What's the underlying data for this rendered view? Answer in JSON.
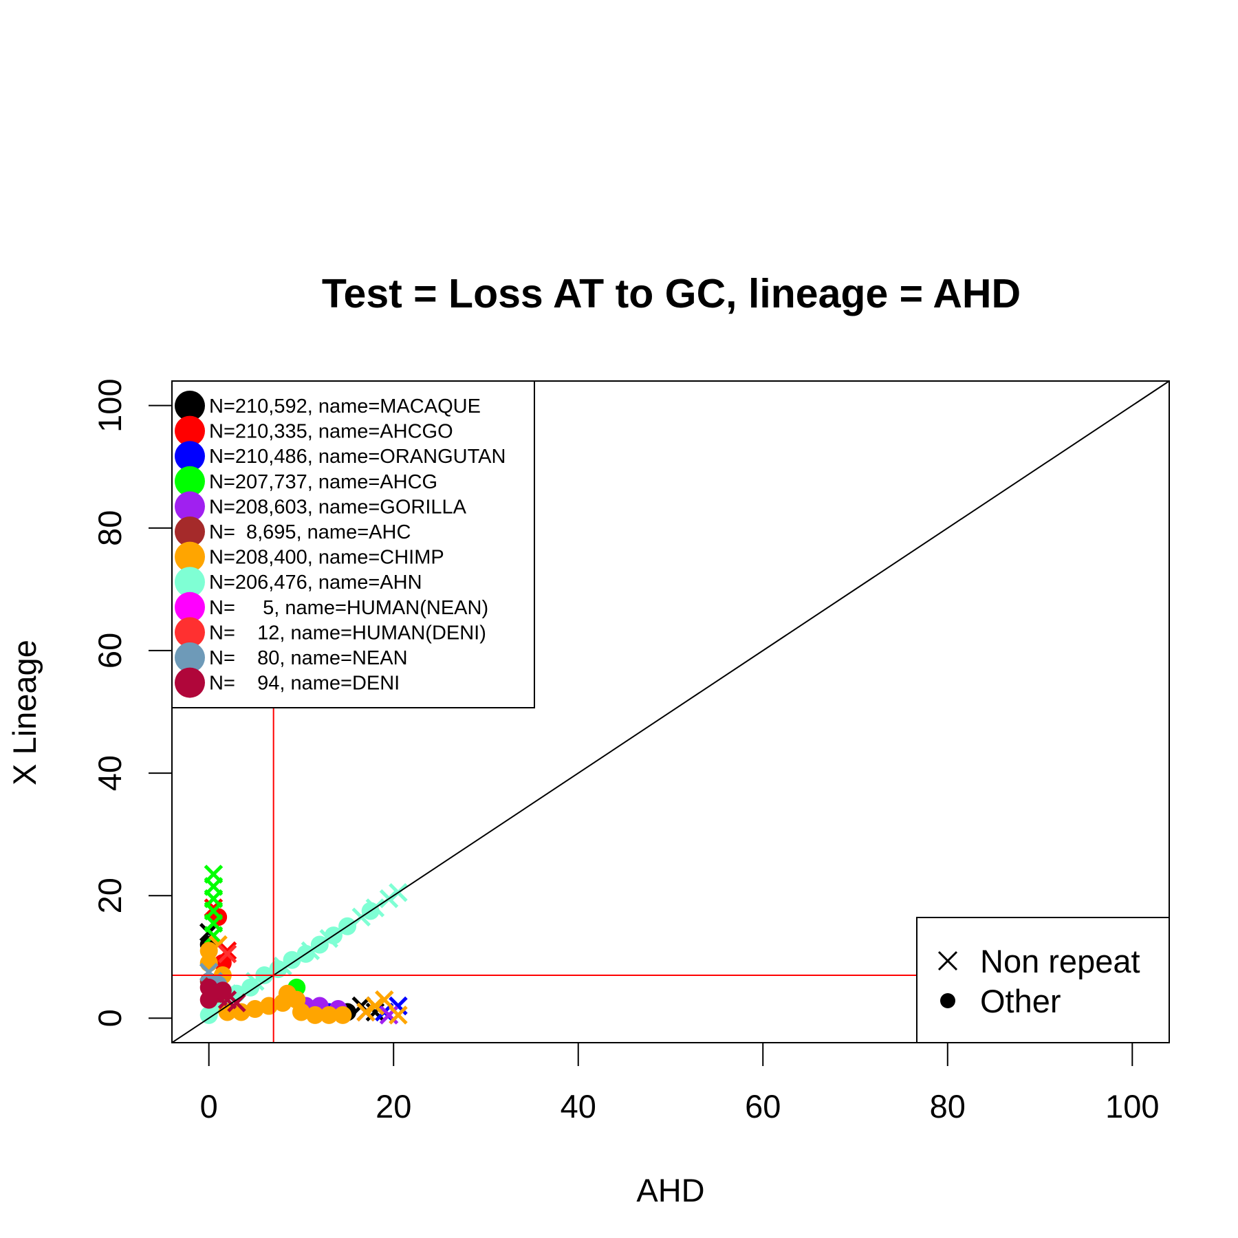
{
  "chart_data": {
    "type": "scatter",
    "title": "Test = Loss AT to GC, lineage = AHD",
    "xlabel": "AHD",
    "ylabel": "X Lineage",
    "xlim": [
      -4,
      104
    ],
    "ylim": [
      -4,
      104
    ],
    "x_ticks": [
      0,
      20,
      40,
      60,
      80,
      100
    ],
    "y_ticks": [
      0,
      20,
      40,
      60,
      80,
      100
    ],
    "x_tick_labels": [
      "0",
      "20",
      "40",
      "60",
      "80",
      "100"
    ],
    "y_tick_labels": [
      "0",
      "20",
      "40",
      "60",
      "80",
      "100"
    ],
    "grid": false,
    "reference_lines": {
      "diagonal": {
        "from": [
          -4,
          -4
        ],
        "to": [
          104,
          104
        ],
        "color": "#000000"
      },
      "vertical": {
        "x": 7,
        "color": "#ff0000"
      },
      "horizontal": {
        "y": 7,
        "color": "#ff0000"
      }
    },
    "legend_lineages": {
      "placement": "top-left",
      "entries": [
        {
          "label": "N=210,592, name=MACAQUE",
          "color": "#000000"
        },
        {
          "label": "N=210,335, name=AHCGO",
          "color": "#ff0000"
        },
        {
          "label": "N=210,486, name=ORANGUTAN",
          "color": "#0000ff"
        },
        {
          "label": "N=207,737, name=AHCG",
          "color": "#00ff00"
        },
        {
          "label": "N=208,603, name=GORILLA",
          "color": "#a020f0"
        },
        {
          "label": "N=  8,695, name=AHC",
          "color": "#a52a2a"
        },
        {
          "label": "N=208,400, name=CHIMP",
          "color": "#ffa500"
        },
        {
          "label": "N=206,476, name=AHN",
          "color": "#7fffd4"
        },
        {
          "label": "N=     5, name=HUMAN(NEAN)",
          "color": "#ff00ff"
        },
        {
          "label": "N=    12, name=HUMAN(DENI)",
          "color": "#ff3030"
        },
        {
          "label": "N=    80, name=NEAN",
          "color": "#6e9ab8"
        },
        {
          "label": "N=    94, name=DENI",
          "color": "#b0063a"
        }
      ]
    },
    "legend_markers": {
      "placement": "bottom-right",
      "entries": [
        {
          "label": "Non repeat",
          "symbol": "cross"
        },
        {
          "label": "Other",
          "symbol": "dot"
        }
      ]
    },
    "series": [
      {
        "color": "#7fffd4",
        "points": [
          {
            "x": 0,
            "y": 0.5,
            "m": "dot"
          },
          {
            "x": 1.5,
            "y": 2,
            "m": "dot"
          },
          {
            "x": 3,
            "y": 4,
            "m": "dot"
          },
          {
            "x": 4.5,
            "y": 5,
            "m": "dot"
          },
          {
            "x": 6,
            "y": 7,
            "m": "dot"
          },
          {
            "x": 7.5,
            "y": 8,
            "m": "dot"
          },
          {
            "x": 9,
            "y": 9.5,
            "m": "dot"
          },
          {
            "x": 10.5,
            "y": 10.5,
            "m": "dot"
          },
          {
            "x": 12,
            "y": 12,
            "m": "dot"
          },
          {
            "x": 13.5,
            "y": 13.5,
            "m": "dot"
          },
          {
            "x": 15,
            "y": 15,
            "m": "dot"
          },
          {
            "x": 17.5,
            "y": 17.5,
            "m": "dot"
          },
          {
            "x": 5,
            "y": 6,
            "m": "cross"
          },
          {
            "x": 8,
            "y": 8.5,
            "m": "cross"
          },
          {
            "x": 11,
            "y": 11,
            "m": "cross"
          },
          {
            "x": 13,
            "y": 13,
            "m": "cross"
          },
          {
            "x": 16.5,
            "y": 16.5,
            "m": "cross"
          },
          {
            "x": 18,
            "y": 18,
            "m": "cross"
          },
          {
            "x": 19.5,
            "y": 19.5,
            "m": "cross"
          },
          {
            "x": 20.5,
            "y": 20.5,
            "m": "cross"
          },
          {
            "x": 2,
            "y": 4,
            "m": "cross"
          },
          {
            "x": 0.5,
            "y": 3,
            "m": "cross"
          }
        ]
      },
      {
        "color": "#000000",
        "points": [
          {
            "x": 0,
            "y": 14,
            "m": "cross"
          },
          {
            "x": 0,
            "y": 12,
            "m": "dot"
          },
          {
            "x": 15,
            "y": 1,
            "m": "dot"
          },
          {
            "x": 16.5,
            "y": 2,
            "m": "cross"
          },
          {
            "x": 18,
            "y": 1,
            "m": "cross"
          }
        ]
      },
      {
        "color": "#ff0000",
        "points": [
          {
            "x": 0.5,
            "y": 18,
            "m": "cross"
          },
          {
            "x": 1,
            "y": 16.5,
            "m": "dot"
          },
          {
            "x": 2,
            "y": 11,
            "m": "cross"
          },
          {
            "x": 1.5,
            "y": 9,
            "m": "dot"
          }
        ]
      },
      {
        "color": "#0000ff",
        "points": [
          {
            "x": 19,
            "y": 1,
            "m": "cross"
          },
          {
            "x": 20.5,
            "y": 2,
            "m": "cross"
          },
          {
            "x": 13,
            "y": 1,
            "m": "dot"
          }
        ]
      },
      {
        "color": "#00ff00",
        "points": [
          {
            "x": 0.5,
            "y": 23.5,
            "m": "cross"
          },
          {
            "x": 0.5,
            "y": 21.5,
            "m": "cross"
          },
          {
            "x": 0.5,
            "y": 19.5,
            "m": "cross"
          },
          {
            "x": 0.5,
            "y": 17.5,
            "m": "cross"
          },
          {
            "x": 0.5,
            "y": 15.5,
            "m": "cross"
          },
          {
            "x": 0.5,
            "y": 13.5,
            "m": "cross"
          },
          {
            "x": 9.5,
            "y": 5,
            "m": "dot"
          }
        ]
      },
      {
        "color": "#a020f0",
        "points": [
          {
            "x": 12,
            "y": 2,
            "m": "dot"
          },
          {
            "x": 14,
            "y": 1.5,
            "m": "dot"
          },
          {
            "x": 17,
            "y": 1,
            "m": "cross"
          },
          {
            "x": 19.5,
            "y": 0.5,
            "m": "cross"
          },
          {
            "x": 10.5,
            "y": 2,
            "m": "dot"
          }
        ]
      },
      {
        "color": "#a52a2a",
        "points": [
          {
            "x": 0,
            "y": 6,
            "m": "dot"
          },
          {
            "x": 1,
            "y": 4,
            "m": "dot"
          }
        ]
      },
      {
        "color": "#ffa500",
        "points": [
          {
            "x": 0,
            "y": 11,
            "m": "dot"
          },
          {
            "x": 1,
            "y": 12,
            "m": "cross"
          },
          {
            "x": 0,
            "y": 9,
            "m": "dot"
          },
          {
            "x": 1.5,
            "y": 7,
            "m": "dot"
          },
          {
            "x": 2,
            "y": 1,
            "m": "dot"
          },
          {
            "x": 3.5,
            "y": 1,
            "m": "dot"
          },
          {
            "x": 5,
            "y": 1.5,
            "m": "dot"
          },
          {
            "x": 6.5,
            "y": 2,
            "m": "dot"
          },
          {
            "x": 8,
            "y": 2.5,
            "m": "dot"
          },
          {
            "x": 9.5,
            "y": 3,
            "m": "dot"
          },
          {
            "x": 10,
            "y": 1,
            "m": "dot"
          },
          {
            "x": 11.5,
            "y": 0.5,
            "m": "dot"
          },
          {
            "x": 13,
            "y": 0.5,
            "m": "dot"
          },
          {
            "x": 14.5,
            "y": 0.5,
            "m": "dot"
          },
          {
            "x": 8.5,
            "y": 4,
            "m": "dot"
          },
          {
            "x": 17,
            "y": 1,
            "m": "cross"
          },
          {
            "x": 18,
            "y": 2,
            "m": "cross"
          },
          {
            "x": 19,
            "y": 3,
            "m": "cross"
          },
          {
            "x": 20.5,
            "y": 0.5,
            "m": "cross"
          }
        ]
      },
      {
        "color": "#ff3030",
        "points": [
          {
            "x": 2,
            "y": 10.5,
            "m": "cross"
          }
        ]
      },
      {
        "color": "#6e9ab8",
        "points": [
          {
            "x": 0,
            "y": 7.5,
            "m": "cross"
          },
          {
            "x": 0.5,
            "y": 6,
            "m": "cross"
          },
          {
            "x": 1,
            "y": 5.5,
            "m": "dot"
          }
        ]
      },
      {
        "color": "#b0063a",
        "points": [
          {
            "x": 0,
            "y": 5,
            "m": "dot"
          },
          {
            "x": 0.5,
            "y": 4,
            "m": "cross"
          },
          {
            "x": 1,
            "y": 3.5,
            "m": "cross"
          },
          {
            "x": 2,
            "y": 3,
            "m": "cross"
          },
          {
            "x": 3,
            "y": 2.5,
            "m": "cross"
          },
          {
            "x": 0,
            "y": 3,
            "m": "dot"
          },
          {
            "x": 1.5,
            "y": 4.5,
            "m": "dot"
          }
        ]
      }
    ]
  }
}
